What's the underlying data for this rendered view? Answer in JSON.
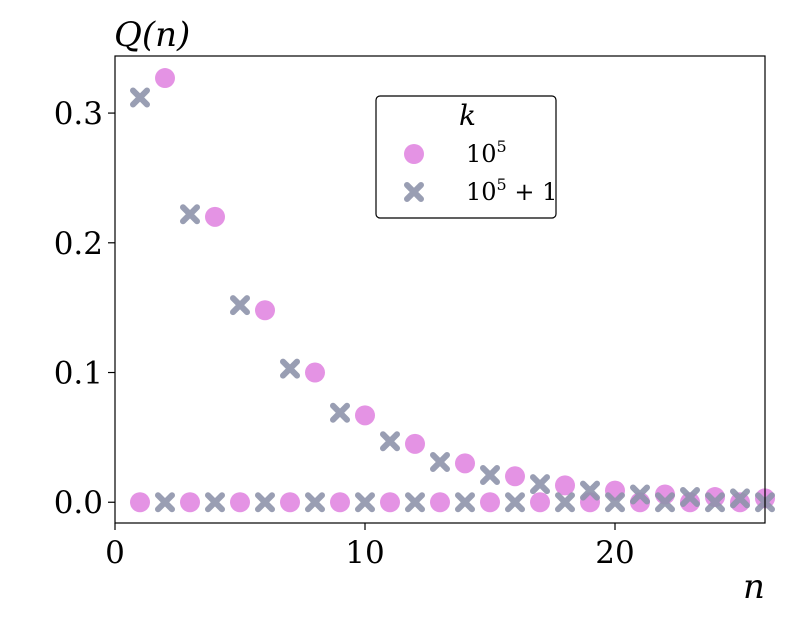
{
  "chart_data": {
    "type": "scatter",
    "title": "",
    "xlabel": "n",
    "ylabel": "Q(n)",
    "xlim": [
      0,
      26
    ],
    "ylim": [
      -0.016,
      0.344
    ],
    "xticks": [
      0,
      10,
      20
    ],
    "xtick_labels": [
      "0",
      "10",
      "20"
    ],
    "yticks": [
      0.0,
      0.1,
      0.2,
      0.3
    ],
    "ytick_labels": [
      "0.0",
      "0.1",
      "0.2",
      "0.3"
    ],
    "grid": false,
    "legend": {
      "title": "k",
      "placement": "upper-center",
      "entries": [
        "10^5",
        "10^5 + 1"
      ]
    },
    "series": [
      {
        "name": "10^5",
        "marker": "circle",
        "color": "#df80df",
        "x": [
          1,
          2,
          3,
          4,
          5,
          6,
          7,
          8,
          9,
          10,
          11,
          12,
          13,
          14,
          15,
          16,
          17,
          18,
          19,
          20,
          21,
          22,
          23,
          24,
          25,
          26
        ],
        "y": [
          0.0,
          0.327,
          0.0,
          0.22,
          0.0,
          0.148,
          0.0,
          0.1,
          0.0,
          0.067,
          0.0,
          0.045,
          0.0,
          0.03,
          0.0,
          0.02,
          0.0,
          0.013,
          0.0,
          0.009,
          0.0,
          0.006,
          0.0,
          0.004,
          0.0,
          0.003
        ]
      },
      {
        "name": "10^5 + 1",
        "marker": "x",
        "color": "#8e94ab",
        "x": [
          1,
          2,
          3,
          4,
          5,
          6,
          7,
          8,
          9,
          10,
          11,
          12,
          13,
          14,
          15,
          16,
          17,
          18,
          19,
          20,
          21,
          22,
          23,
          24,
          25,
          26
        ],
        "y": [
          0.312,
          0.0,
          0.222,
          0.0,
          0.152,
          0.0,
          0.103,
          0.0,
          0.069,
          0.0,
          0.047,
          0.0,
          0.031,
          0.0,
          0.021,
          0.0,
          0.014,
          0.0,
          0.009,
          0.0,
          0.006,
          0.0,
          0.004,
          0.0,
          0.003,
          0.0
        ]
      }
    ]
  }
}
